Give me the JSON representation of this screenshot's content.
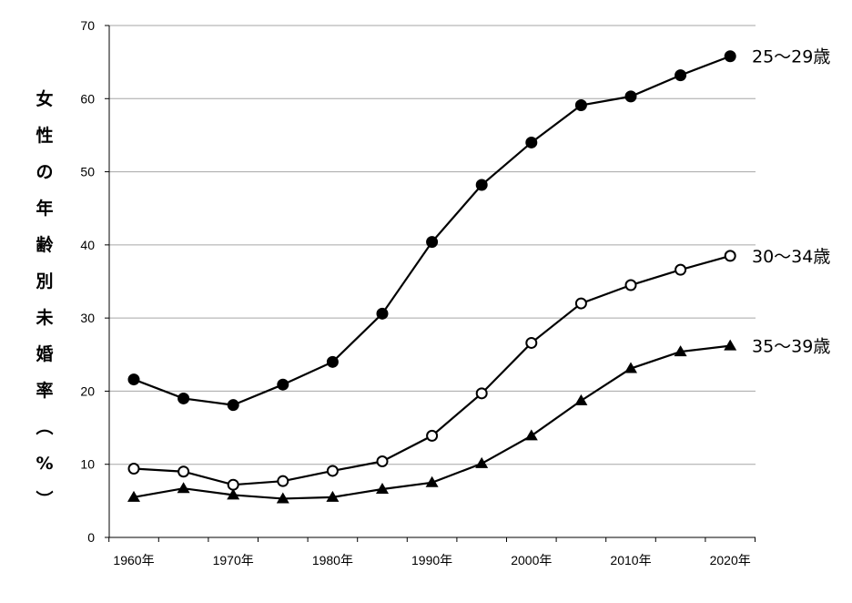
{
  "chart_data": {
    "type": "line",
    "ylabel_chars": [
      "女",
      "性",
      "の",
      "年",
      "齢",
      "別",
      "未",
      "婚",
      "率",
      "︵",
      "%",
      "︶"
    ],
    "ylim": [
      0,
      70
    ],
    "yticks": [
      "0",
      "10",
      "20",
      "30",
      "40",
      "50",
      "60",
      "70"
    ],
    "ytick_values": [
      0,
      10,
      20,
      30,
      40,
      50,
      60,
      70
    ],
    "x": [
      1960,
      1965,
      1970,
      1975,
      1980,
      1985,
      1990,
      1995,
      2000,
      2005,
      2010,
      2015,
      2020
    ],
    "xticks": [
      "1960年",
      "1970年",
      "1980年",
      "1990年",
      "2000年",
      "2010年",
      "2020年"
    ],
    "xtick_values": [
      1960,
      1970,
      1980,
      1990,
      2000,
      2010,
      2020
    ],
    "grid": true,
    "series": [
      {
        "name": "25〜29歳",
        "marker": "filled-circle",
        "values": [
          21.6,
          19.0,
          18.1,
          20.9,
          24.0,
          30.6,
          40.4,
          48.2,
          54.0,
          59.1,
          60.3,
          63.2,
          65.8
        ]
      },
      {
        "name": "30〜34歳",
        "marker": "open-circle",
        "values": [
          9.4,
          9.0,
          7.2,
          7.7,
          9.1,
          10.4,
          13.9,
          19.7,
          26.6,
          32.0,
          34.5,
          36.6,
          38.5
        ]
      },
      {
        "name": "35〜39歳",
        "marker": "filled-triangle",
        "values": [
          5.5,
          6.7,
          5.8,
          5.3,
          5.5,
          6.6,
          7.5,
          10.1,
          13.9,
          18.7,
          23.1,
          25.4,
          26.2
        ]
      }
    ]
  }
}
